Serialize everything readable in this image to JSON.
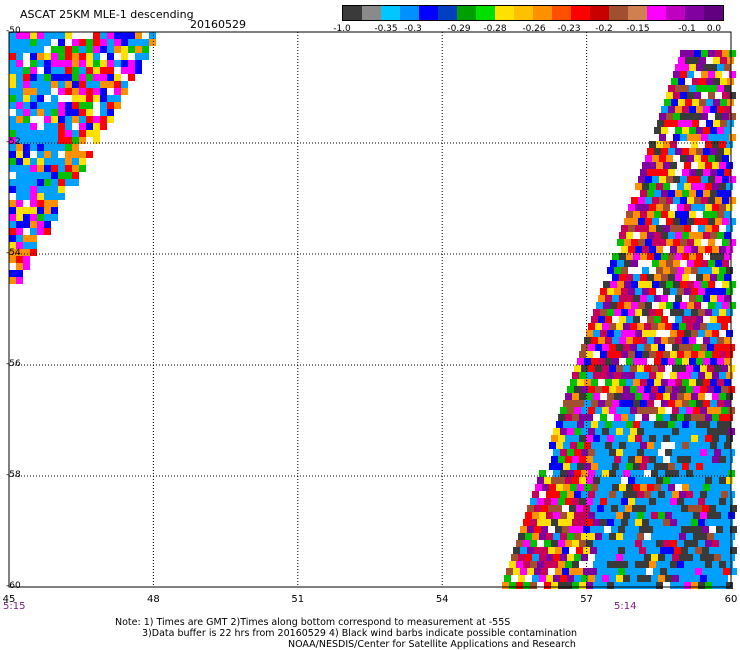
{
  "header": {
    "title": "ASCAT 25KM MLE-1 descending",
    "date": "20160529"
  },
  "colorbar": {
    "colors": [
      "#3a3a3a",
      "#8a8a8a",
      "#00c8ff",
      "#0090ff",
      "#0000ff",
      "#0040c0",
      "#00a000",
      "#00e000",
      "#ffe000",
      "#ffc000",
      "#ff9000",
      "#ff5000",
      "#ff0000",
      "#c80000",
      "#a05030",
      "#d08050",
      "#ff00ff",
      "#c000c0",
      "#8000a0",
      "#600080"
    ],
    "labels": [
      "-1.0",
      "-0.35",
      "-0.3",
      "-0.29",
      "-0.28",
      "-0.26",
      "-0.23",
      "-0.2",
      "-0.15",
      "-0.1",
      "0.0"
    ]
  },
  "map": {
    "lon_labels": [
      "45",
      "48",
      "51",
      "54",
      "57",
      "60"
    ],
    "lat_labels": [
      "-50",
      "-52",
      "-54",
      "-56",
      "-58",
      "-60"
    ],
    "time_labels": [
      "5:15",
      "5:14"
    ],
    "palette": [
      "#ff0000",
      "#ffe000",
      "#0000ff",
      "#00a0ff",
      "#00c000",
      "#ff00ff",
      "#ffffff",
      "#ff9000",
      "#8000a0",
      "#a05030",
      "#3a3a3a",
      "#c8005a"
    ]
  },
  "notes": {
    "line1": "Note: 1) Times are GMT 2)Times along bottom correspond to measurement at -55S",
    "line2": "3)Data buffer is 22 hrs from 20160529 4) Black wind barbs indicate possible contamination",
    "credit": "NOAA/NESDIS/Center for Satellite Applications and Research"
  }
}
